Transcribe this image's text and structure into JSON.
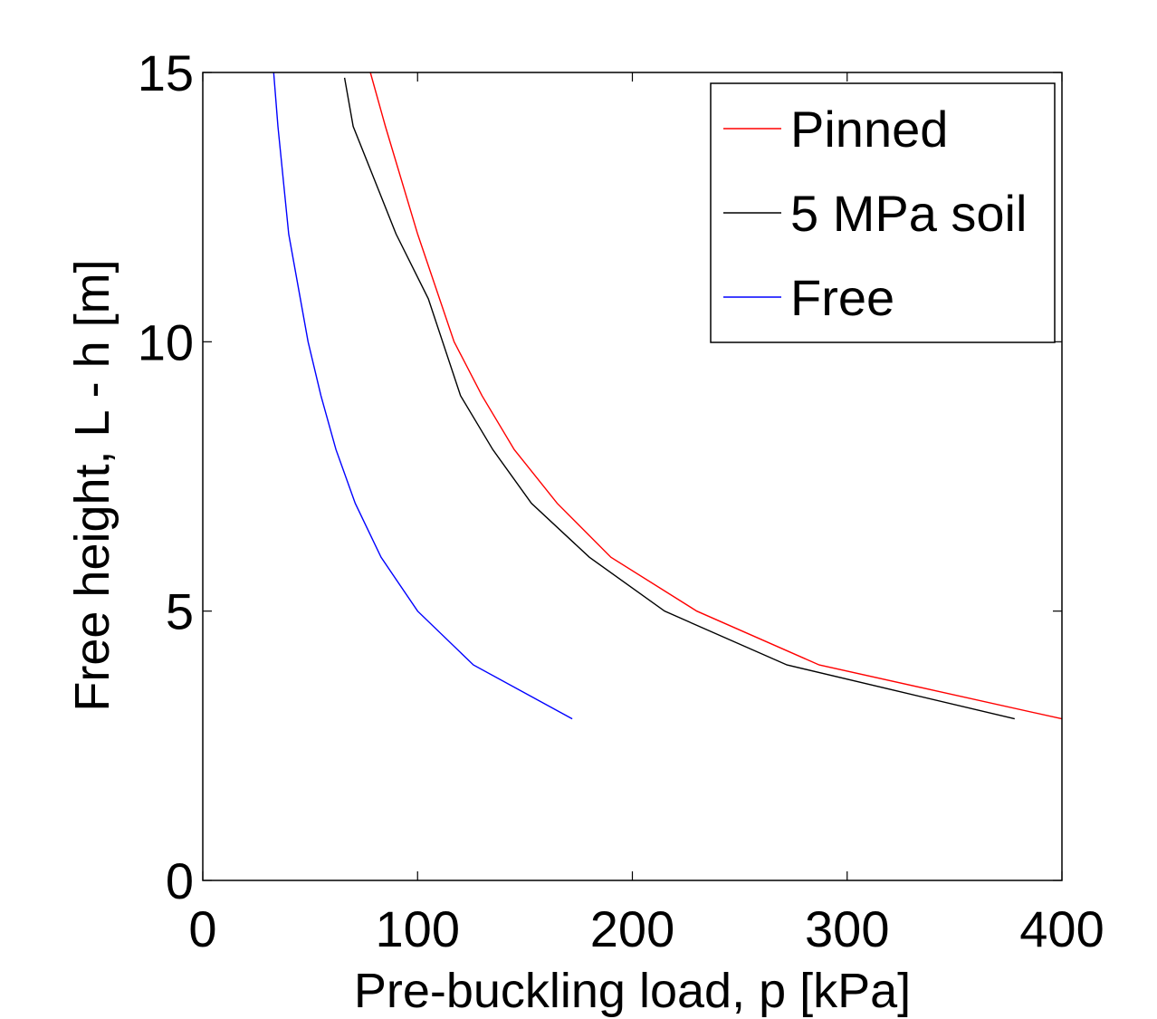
{
  "chart_data": {
    "type": "line",
    "xlabel": "Pre-buckling load, p [kPa]",
    "ylabel": "Free height, L - h [m]",
    "xlim": [
      0,
      400
    ],
    "ylim": [
      0,
      15
    ],
    "xticks": [
      "0",
      "100",
      "200",
      "300",
      "400"
    ],
    "yticks": [
      "0",
      "5",
      "10",
      "15"
    ],
    "grid": false,
    "legend_position": "top-right",
    "series": [
      {
        "name": "Pinned",
        "color": "#ff0000",
        "x": [
          78,
          85,
          100,
          117,
          130,
          145,
          165,
          190,
          230,
          287,
          400
        ],
        "y": [
          15,
          14,
          12,
          10,
          9,
          8,
          7,
          6,
          5,
          4,
          3
        ]
      },
      {
        "name": "5 MPa soil",
        "color": "#000000",
        "x": [
          66,
          70,
          80,
          90,
          105,
          120,
          135,
          153,
          180,
          215,
          272,
          378
        ],
        "y": [
          14.9,
          14,
          13,
          12,
          10.8,
          9,
          8,
          7,
          6,
          5,
          4,
          3
        ]
      },
      {
        "name": "Free",
        "color": "#0000ff",
        "x": [
          33,
          35,
          40,
          49,
          55,
          62,
          71,
          83,
          100,
          126,
          172
        ],
        "y": [
          15,
          14,
          12,
          10,
          9,
          8,
          7,
          6,
          5,
          4,
          3
        ]
      }
    ]
  }
}
